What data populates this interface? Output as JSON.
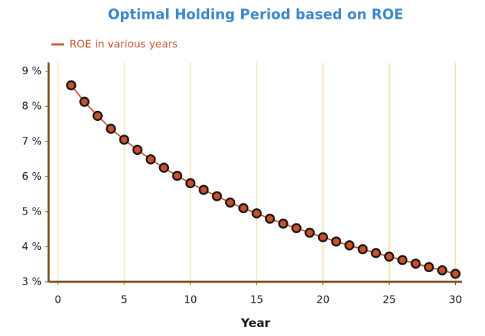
{
  "chart_data": {
    "type": "line",
    "title": "Optimal Holding Period based on ROE",
    "x_label": "Year",
    "x": [
      1,
      2,
      3,
      4,
      5,
      6,
      7,
      8,
      9,
      10,
      11,
      12,
      13,
      14,
      15,
      16,
      17,
      18,
      19,
      20,
      21,
      22,
      23,
      24,
      25,
      26,
      27,
      28,
      29,
      30
    ],
    "series": [
      {
        "name": "ROE in various years",
        "color": "#c8502a",
        "values": [
          8.6,
          8.13,
          7.73,
          7.36,
          7.05,
          6.76,
          6.49,
          6.25,
          6.02,
          5.81,
          5.62,
          5.44,
          5.26,
          5.1,
          4.95,
          4.8,
          4.66,
          4.53,
          4.4,
          4.27,
          4.15,
          4.04,
          3.93,
          3.82,
          3.72,
          3.62,
          3.52,
          3.42,
          3.33,
          3.23
        ]
      }
    ],
    "xlim": [
      -0.7,
      30.5
    ],
    "xticks": [
      0,
      5,
      10,
      15,
      20,
      25,
      30
    ],
    "ylim": [
      3,
      9.25
    ],
    "yticks": [
      {
        "value": 3,
        "label": "3 %"
      },
      {
        "value": 4,
        "label": "4 %"
      },
      {
        "value": 5,
        "label": "5 %"
      },
      {
        "value": 6,
        "label": "6 %"
      },
      {
        "value": 7,
        "label": "7 %"
      },
      {
        "value": 8,
        "label": "8 %"
      },
      {
        "value": 9,
        "label": "9 %"
      }
    ],
    "grid": "x",
    "legend": "top-left"
  }
}
